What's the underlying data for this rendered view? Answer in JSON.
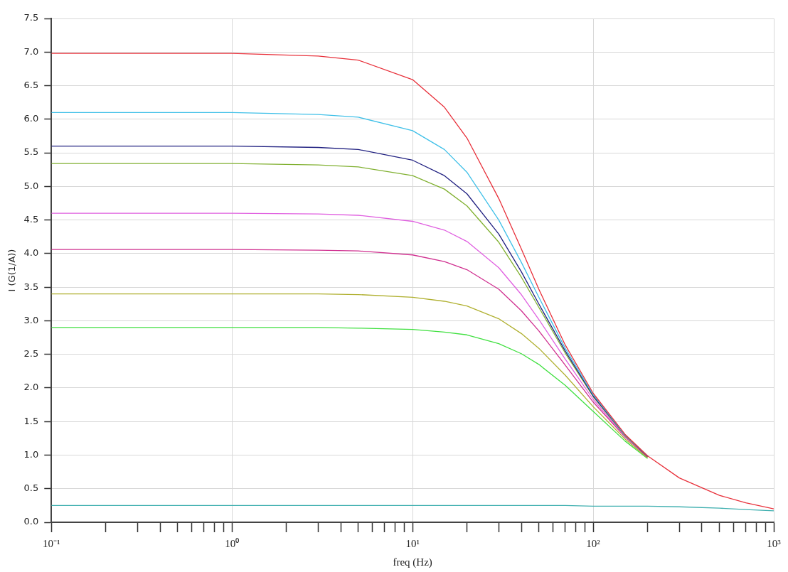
{
  "chart_data": {
    "type": "line",
    "xlabel": "freq (Hz)",
    "ylabel": "I (G(1/A))",
    "log": "x",
    "grid": true,
    "x": [
      0.1,
      1,
      3,
      5,
      10,
      15,
      20,
      30,
      40,
      50,
      70,
      100,
      150,
      200,
      300,
      500,
      700,
      1000
    ],
    "xlim": [
      0.1,
      1000
    ],
    "xticks": [
      {
        "value": 0.1,
        "label": "10⁻¹"
      },
      {
        "value": 0.2,
        "label": null
      },
      {
        "value": 0.3,
        "label": null
      },
      {
        "value": 0.4,
        "label": null
      },
      {
        "value": 0.5,
        "label": null
      },
      {
        "value": 0.6,
        "label": null
      },
      {
        "value": 0.7,
        "label": null
      },
      {
        "value": 0.8,
        "label": null
      },
      {
        "value": 0.9,
        "label": null
      },
      {
        "value": 1,
        "label": "10⁰"
      },
      {
        "value": 2,
        "label": null
      },
      {
        "value": 3,
        "label": null
      },
      {
        "value": 4,
        "label": null
      },
      {
        "value": 5,
        "label": null
      },
      {
        "value": 6,
        "label": null
      },
      {
        "value": 7,
        "label": null
      },
      {
        "value": 8,
        "label": null
      },
      {
        "value": 9,
        "label": null
      },
      {
        "value": 10,
        "label": "10¹"
      },
      {
        "value": 20,
        "label": null
      },
      {
        "value": 30,
        "label": null
      },
      {
        "value": 40,
        "label": null
      },
      {
        "value": 50,
        "label": null
      },
      {
        "value": 60,
        "label": null
      },
      {
        "value": 70,
        "label": null
      },
      {
        "value": 80,
        "label": null
      },
      {
        "value": 90,
        "label": null
      },
      {
        "value": 100,
        "label": "10²"
      },
      {
        "value": 200,
        "label": null
      },
      {
        "value": 300,
        "label": null
      },
      {
        "value": 400,
        "label": null
      },
      {
        "value": 500,
        "label": null
      },
      {
        "value": 600,
        "label": null
      },
      {
        "value": 700,
        "label": null
      },
      {
        "value": 800,
        "label": null
      },
      {
        "value": 900,
        "label": null
      },
      {
        "value": 1000,
        "label": "10³"
      }
    ],
    "ylim": [
      0,
      7.5
    ],
    "yticks": [
      {
        "value": 0,
        "label": "0.0"
      },
      0.5,
      {
        "value": 1,
        "label": "1.0"
      },
      1.5,
      {
        "value": 2,
        "label": "2.0"
      },
      2.5,
      {
        "value": 3,
        "label": "3.0"
      },
      3.5,
      {
        "value": 4,
        "label": "4.0"
      },
      4.5,
      {
        "value": 5,
        "label": "5.0"
      },
      5.5,
      {
        "value": 6,
        "label": "6.0"
      },
      6.5,
      {
        "value": 7,
        "label": "7.0"
      },
      7.5
    ],
    "series": [
      {
        "color": "#e8303a",
        "values": [
          6.98,
          6.98,
          6.94,
          6.88,
          6.59,
          6.18,
          5.72,
          4.82,
          4.07,
          3.47,
          2.64,
          1.92,
          1.31,
          0.99,
          0.66,
          0.4,
          0.29,
          0.2
        ]
      },
      {
        "color": "#40c0e8",
        "values": [
          6.1,
          6.1,
          6.07,
          6.03,
          5.83,
          5.55,
          5.21,
          4.5,
          3.87,
          3.35,
          2.59,
          1.9,
          1.3,
          0.99,
          null,
          null,
          null,
          null
        ]
      },
      {
        "color": "#202080",
        "values": [
          5.6,
          5.6,
          5.58,
          5.55,
          5.39,
          5.16,
          4.89,
          4.29,
          3.73,
          3.25,
          2.55,
          1.88,
          1.3,
          0.98,
          null,
          null,
          null,
          null
        ]
      },
      {
        "color": "#80b030",
        "values": [
          5.34,
          5.34,
          5.32,
          5.29,
          5.16,
          4.96,
          4.71,
          4.17,
          3.65,
          3.2,
          2.52,
          1.87,
          1.29,
          0.98,
          null,
          null,
          null,
          null
        ]
      },
      {
        "color": "#e060e0",
        "values": [
          4.6,
          4.6,
          4.59,
          4.57,
          4.48,
          4.35,
          4.18,
          3.79,
          3.39,
          3.02,
          2.43,
          1.83,
          1.28,
          0.98,
          null,
          null,
          null,
          null
        ]
      },
      {
        "color": "#d03090",
        "values": [
          4.06,
          4.06,
          4.05,
          4.04,
          3.98,
          3.88,
          3.76,
          3.47,
          3.15,
          2.85,
          2.34,
          1.79,
          1.27,
          0.97,
          null,
          null,
          null,
          null
        ]
      },
      {
        "color": "#b0b030",
        "values": [
          3.4,
          3.4,
          3.4,
          3.39,
          3.35,
          3.29,
          3.22,
          3.03,
          2.81,
          2.59,
          2.19,
          1.72,
          1.24,
          0.96,
          null,
          null,
          null,
          null
        ]
      },
      {
        "color": "#40e040",
        "values": [
          2.9,
          2.9,
          2.9,
          2.89,
          2.87,
          2.83,
          2.79,
          2.66,
          2.51,
          2.35,
          2.04,
          1.65,
          1.21,
          0.95,
          null,
          null,
          null,
          null
        ]
      },
      {
        "color": "#40b0b0",
        "values": [
          0.25,
          0.25,
          0.25,
          0.25,
          0.25,
          0.25,
          0.25,
          0.25,
          0.25,
          0.25,
          0.25,
          0.24,
          0.24,
          0.24,
          0.23,
          0.21,
          0.19,
          0.17
        ]
      }
    ]
  }
}
